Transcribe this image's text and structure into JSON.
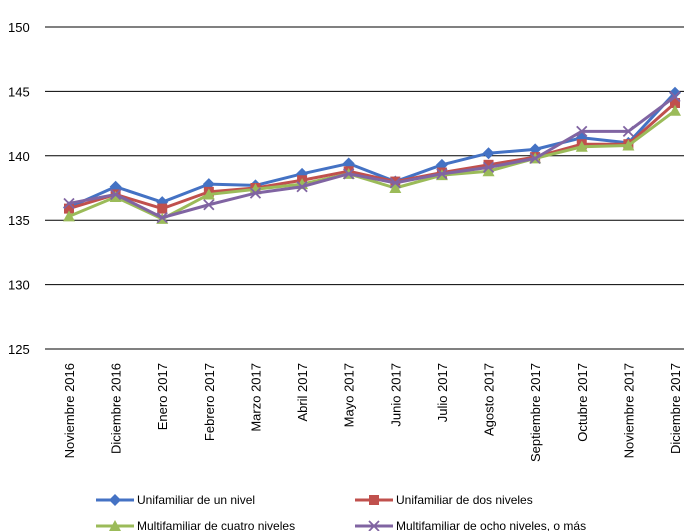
{
  "chart_data": {
    "type": "line",
    "title": "",
    "xlabel": "",
    "ylabel": "",
    "ylim": [
      125,
      150
    ],
    "yticks": [
      125,
      130,
      135,
      140,
      145,
      150
    ],
    "grid": "horizontal",
    "legend_position": "bottom",
    "categories": [
      "Noviembre 2016",
      "Diciembre 2016",
      "Enero 2017",
      "Febrero 2017",
      "Marzo 2017",
      "Abril 2017",
      "Mayo 2017",
      "Junio 2017",
      "Julio 2017",
      "Agosto 2017",
      "Septiembre 2017",
      "Octubre 2017",
      "Noviembre 2017",
      "Diciembre 2017"
    ],
    "series": [
      {
        "name": "Unifamiliar de un nivel",
        "color": "#4472c4",
        "marker": "diamond",
        "values": [
          136.0,
          137.6,
          136.4,
          137.8,
          137.7,
          138.6,
          139.4,
          138.0,
          139.3,
          140.2,
          140.5,
          141.4,
          141.0,
          144.9
        ]
      },
      {
        "name": "Unifamiliar de dos niveles",
        "color": "#c0504d",
        "marker": "square",
        "values": [
          135.9,
          137.0,
          135.9,
          137.2,
          137.5,
          138.1,
          138.8,
          138.0,
          138.7,
          139.3,
          139.9,
          140.9,
          140.9,
          144.1
        ]
      },
      {
        "name": "Multifamiliar de cuatro niveles",
        "color": "#9bbb59",
        "marker": "triangle",
        "values": [
          135.3,
          136.8,
          135.1,
          137.0,
          137.4,
          137.8,
          138.6,
          137.5,
          138.5,
          138.8,
          139.8,
          140.7,
          140.8,
          143.5
        ]
      },
      {
        "name": "Multifamiliar de ocho niveles, o más",
        "color": "#8064a2",
        "marker": "x",
        "values": [
          136.3,
          137.0,
          135.2,
          136.2,
          137.1,
          137.6,
          138.6,
          137.9,
          138.6,
          139.1,
          139.8,
          141.9,
          141.9,
          144.6
        ]
      }
    ]
  }
}
